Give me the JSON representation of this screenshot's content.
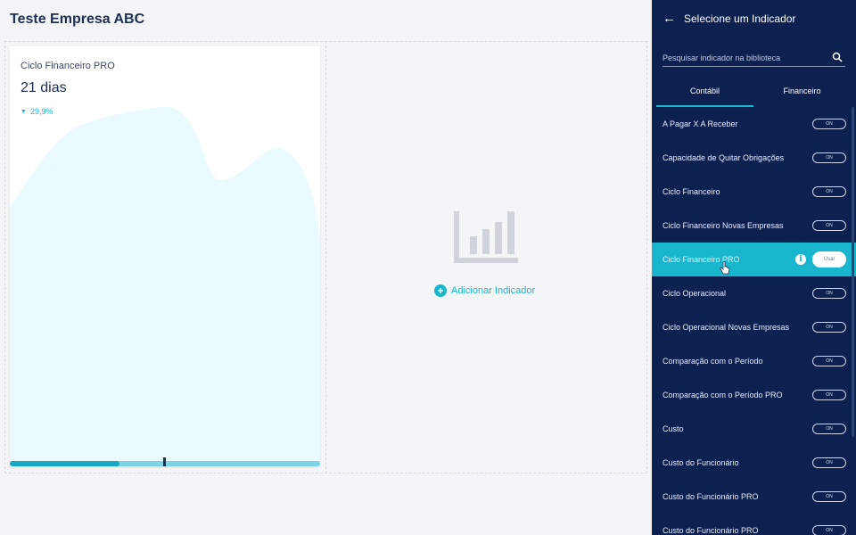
{
  "page": {
    "title": "Teste Empresa ABC"
  },
  "card": {
    "title": "Ciclo Financeiro PRO",
    "value": "21 dias",
    "trend_direction": "down",
    "trend_text": "29,9%",
    "area_color": "#e9fbfe",
    "accent_color": "#18b5cf"
  },
  "empty_slot": {
    "icon": "bar-chart-placeholder-icon",
    "add_label": "Adicionar Indicador"
  },
  "panel": {
    "title": "Selecione um Indicador",
    "back_icon": "arrow-left-icon",
    "search": {
      "placeholder": "Pesquisar indicador na biblioteca",
      "value": ""
    },
    "tabs": [
      {
        "label": "Contábil",
        "active": true
      },
      {
        "label": "Financeiro",
        "active": false
      }
    ],
    "items": [
      {
        "label": "A Pagar X A Receber",
        "toggle": "ON"
      },
      {
        "label": "Capacidade de Quitar Obrigações",
        "toggle": "ON"
      },
      {
        "label": "Ciclo Financeiro",
        "toggle": "ON"
      },
      {
        "label": "Ciclo Financeiro Novas Empresas",
        "toggle": "ON"
      },
      {
        "label": "Ciclo Financeiro PRO",
        "hovered": true,
        "info_icon": "info-icon",
        "use_label": "Usar"
      },
      {
        "label": "Ciclo Operacional",
        "toggle": "ON"
      },
      {
        "label": "Ciclo Operacional Novas Empresas",
        "toggle": "ON"
      },
      {
        "label": "Comparação com o Período",
        "toggle": "ON"
      },
      {
        "label": "Comparação com o Período PRO",
        "toggle": "ON"
      },
      {
        "label": "Custo",
        "toggle": "ON"
      },
      {
        "label": "Custo do Funcionário",
        "toggle": "ON"
      },
      {
        "label": "Custo do Funcionário PRO",
        "toggle": "ON"
      },
      {
        "label": "Custo do Funcionário PRO",
        "toggle": "ON"
      }
    ]
  },
  "colors": {
    "panel_bg": "#0d2151",
    "accent": "#18b5cf",
    "title": "#1e2d52"
  }
}
